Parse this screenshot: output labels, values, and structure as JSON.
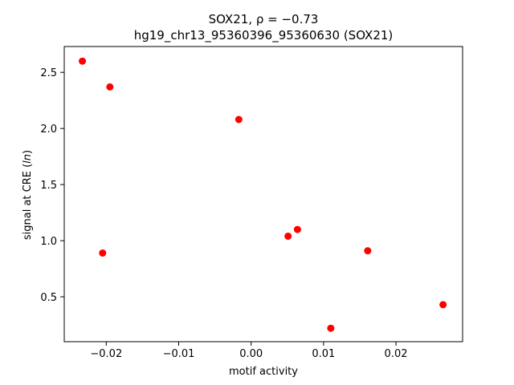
{
  "chart_data": {
    "type": "scatter",
    "title_line1": "SOX21, ρ = −0.73",
    "title_line2": "hg19_chr13_95360396_95360630 (SOX21)",
    "xlabel": "motif activity",
    "ylabel_prefix": "signal at CRE (",
    "ylabel_italic": "ln",
    "ylabel_suffix": ")",
    "xlim": [
      -0.0258,
      0.0292
    ],
    "ylim": [
      0.1,
      2.73
    ],
    "x_ticks": [
      -0.02,
      -0.01,
      0.0,
      0.01,
      0.02
    ],
    "x_tick_labels": [
      "−0.02",
      "−0.01",
      "0.00",
      "0.01",
      "0.02"
    ],
    "y_ticks": [
      0.5,
      1.0,
      1.5,
      2.0,
      2.5
    ],
    "y_tick_labels": [
      "0.5",
      "1.0",
      "1.5",
      "2.0",
      "2.5"
    ],
    "marker_color": "#ff0000",
    "points": [
      {
        "x": -0.0233,
        "y": 2.6
      },
      {
        "x": -0.0195,
        "y": 2.37
      },
      {
        "x": -0.0017,
        "y": 2.08
      },
      {
        "x": 0.0064,
        "y": 1.1
      },
      {
        "x": 0.0051,
        "y": 1.04
      },
      {
        "x": -0.0205,
        "y": 0.89
      },
      {
        "x": 0.0161,
        "y": 0.91
      },
      {
        "x": 0.011,
        "y": 0.22
      },
      {
        "x": 0.0265,
        "y": 0.43
      }
    ]
  }
}
